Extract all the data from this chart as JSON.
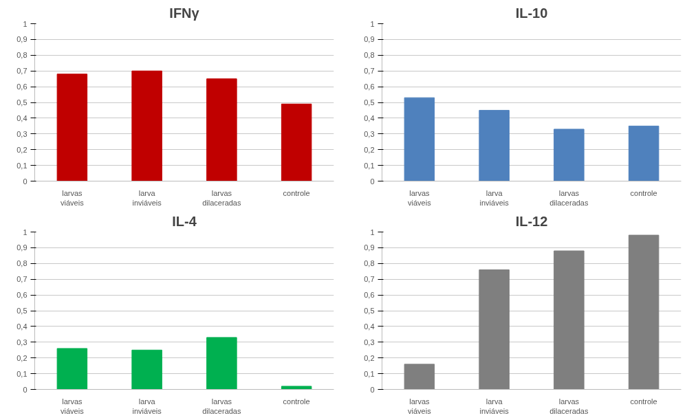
{
  "chart_data": [
    {
      "type": "bar",
      "title": "IFNγ",
      "categories": [
        "larvas viáveis",
        "larva inviáveis",
        "larvas dilaceradas",
        "controle"
      ],
      "values": [
        0.68,
        0.7,
        0.65,
        0.49
      ],
      "color": "#c00000",
      "ylim": [
        0,
        1
      ],
      "yticks": [
        {
          "value": 0,
          "label": "0"
        },
        {
          "value": 0.1,
          "label": "0,1"
        },
        {
          "value": 0.2,
          "label": "0,2"
        },
        {
          "value": 0.3,
          "label": "0,3"
        },
        {
          "value": 0.4,
          "label": "0,4"
        },
        {
          "value": 0.5,
          "label": "0,5"
        },
        {
          "value": 0.6,
          "label": "0,6"
        },
        {
          "value": 0.7,
          "label": "0,7"
        },
        {
          "value": 0.8,
          "label": "0,8"
        },
        {
          "value": 0.9,
          "label": "0,9"
        },
        {
          "value": 1,
          "label": "1"
        }
      ],
      "grid": "y"
    },
    {
      "type": "bar",
      "title": "IL-10",
      "categories": [
        "larvas viáveis",
        "larva inviáveis",
        "larvas dilaceradas",
        "controle"
      ],
      "values": [
        0.53,
        0.45,
        0.33,
        0.35
      ],
      "color": "#4f81bd",
      "ylim": [
        0,
        1
      ],
      "yticks": [
        {
          "value": 0,
          "label": "0"
        },
        {
          "value": 0.1,
          "label": "0,1"
        },
        {
          "value": 0.2,
          "label": "0,2"
        },
        {
          "value": 0.3,
          "label": "0,3"
        },
        {
          "value": 0.4,
          "label": "0,4"
        },
        {
          "value": 0.5,
          "label": "0,5"
        },
        {
          "value": 0.6,
          "label": "0,6"
        },
        {
          "value": 0.7,
          "label": "0,7"
        },
        {
          "value": 0.8,
          "label": "0,8"
        },
        {
          "value": 0.9,
          "label": "0,9"
        },
        {
          "value": 1,
          "label": "1"
        }
      ],
      "grid": "y"
    },
    {
      "type": "bar",
      "title": "IL-4",
      "categories": [
        "larvas viáveis",
        "larva inviáveis",
        "larvas dilaceradas",
        "controle"
      ],
      "values": [
        0.26,
        0.25,
        0.33,
        0.02
      ],
      "color": "#00b050",
      "ylim": [
        0,
        1
      ],
      "yticks": [
        {
          "value": 0,
          "label": "0"
        },
        {
          "value": 0.1,
          "label": "0,1"
        },
        {
          "value": 0.2,
          "label": "0,2"
        },
        {
          "value": 0.3,
          "label": "0,3"
        },
        {
          "value": 0.4,
          "label": "0,4"
        },
        {
          "value": 0.5,
          "label": "0,5"
        },
        {
          "value": 0.6,
          "label": "0,6"
        },
        {
          "value": 0.7,
          "label": "0,7"
        },
        {
          "value": 0.8,
          "label": "0,8"
        },
        {
          "value": 0.9,
          "label": "0,9"
        },
        {
          "value": 1,
          "label": "1"
        }
      ],
      "grid": "y"
    },
    {
      "type": "bar",
      "title": "IL-12",
      "categories": [
        "larvas viáveis",
        "larva inviáveis",
        "larvas dilaceradas",
        "controle"
      ],
      "values": [
        0.16,
        0.76,
        0.88,
        0.98
      ],
      "color": "#7f7f7f",
      "ylim": [
        0,
        1
      ],
      "yticks": [
        {
          "value": 0,
          "label": "0"
        },
        {
          "value": 0.1,
          "label": "0,1"
        },
        {
          "value": 0.2,
          "label": "0,2"
        },
        {
          "value": 0.3,
          "label": "0,3"
        },
        {
          "value": 0.4,
          "label": "0,4"
        },
        {
          "value": 0.5,
          "label": "0,5"
        },
        {
          "value": 0.6,
          "label": "0,6"
        },
        {
          "value": 0.7,
          "label": "0,7"
        },
        {
          "value": 0.8,
          "label": "0,8"
        },
        {
          "value": 0.9,
          "label": "0,9"
        },
        {
          "value": 1,
          "label": "1"
        }
      ],
      "grid": "y"
    }
  ]
}
